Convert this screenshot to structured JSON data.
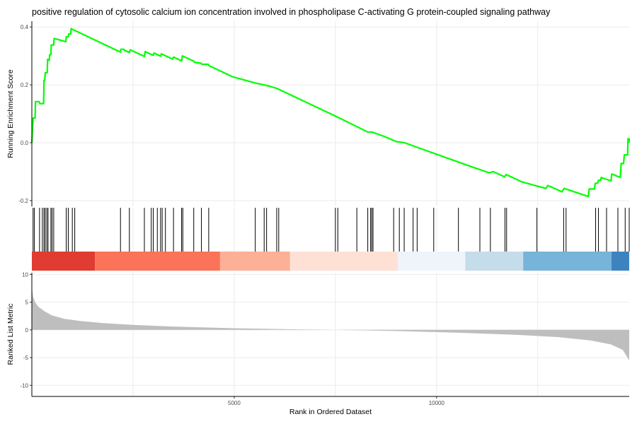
{
  "chart_data": {
    "type": "line",
    "title": "positive regulation of cytosolic calcium ion concentration involved in phospholipase C-activating G protein-coupled signaling pathway",
    "xlabel": "Rank in Ordered Dataset",
    "xlim": [
      0,
      14760
    ],
    "x_ticks": [
      {
        "value": 5000,
        "label": "5000"
      },
      {
        "value": 10000,
        "label": "10000"
      }
    ],
    "x_gridlines": [
      2500,
      5000,
      7500,
      10000,
      12500
    ],
    "grid": true,
    "colors": {
      "running_score_line": "#00ff00",
      "hit_lines": "#000000",
      "metric_area": "#bebebe",
      "gridline": "#ebebeb",
      "axis": "#000000"
    },
    "panels": [
      {
        "name": "running-enrichment-score",
        "ylabel": "Running Enrichment Score",
        "ylim": [
          -0.22,
          0.42
        ],
        "y_ticks": [
          {
            "value": 0.4,
            "label": "0.4"
          },
          {
            "value": 0.2,
            "label": "0.2"
          },
          {
            "value": 0.0,
            "label": "0.0"
          },
          {
            "value": -0.2,
            "label": "-0.2"
          }
        ],
        "series": [
          {
            "points": [
              [
                0,
                0.0
              ],
              [
                30,
                0.085
              ],
              [
                80,
                0.085
              ],
              [
                90,
                0.142
              ],
              [
                180,
                0.142
              ],
              [
                200,
                0.135
              ],
              [
                290,
                0.135
              ],
              [
                300,
                0.216
              ],
              [
                320,
                0.216
              ],
              [
                330,
                0.242
              ],
              [
                380,
                0.242
              ],
              [
                390,
                0.288
              ],
              [
                430,
                0.285
              ],
              [
                440,
                0.304
              ],
              [
                470,
                0.304
              ],
              [
                480,
                0.338
              ],
              [
                540,
                0.338
              ],
              [
                550,
                0.36
              ],
              [
                620,
                0.358
              ],
              [
                840,
                0.349
              ],
              [
                850,
                0.366
              ],
              [
                900,
                0.366
              ],
              [
                910,
                0.376
              ],
              [
                960,
                0.376
              ],
              [
                970,
                0.394
              ],
              [
                2190,
                0.313
              ],
              [
                2200,
                0.323
              ],
              [
                2270,
                0.323
              ],
              [
                2290,
                0.319
              ],
              [
                2410,
                0.312
              ],
              [
                2430,
                0.321
              ],
              [
                2780,
                0.298
              ],
              [
                2800,
                0.315
              ],
              [
                3000,
                0.302
              ],
              [
                3020,
                0.31
              ],
              [
                3180,
                0.299
              ],
              [
                3200,
                0.307
              ],
              [
                3480,
                0.289
              ],
              [
                3500,
                0.296
              ],
              [
                3700,
                0.283
              ],
              [
                3720,
                0.3
              ],
              [
                4000,
                0.282
              ],
              [
                4020,
                0.278
              ],
              [
                4180,
                0.275
              ],
              [
                4200,
                0.271
              ],
              [
                4360,
                0.271
              ],
              [
                4380,
                0.266
              ],
              [
                4960,
                0.228
              ],
              [
                5500,
                0.207
              ],
              [
                5800,
                0.198
              ],
              [
                6050,
                0.188
              ],
              [
                7500,
                0.092
              ],
              [
                8300,
                0.037
              ],
              [
                8400,
                0.037
              ],
              [
                8700,
                0.022
              ],
              [
                9000,
                0.004
              ],
              [
                9200,
                0.0
              ],
              [
                10800,
                -0.08
              ],
              [
                11300,
                -0.104
              ],
              [
                11400,
                -0.1
              ],
              [
                11680,
                -0.118
              ],
              [
                11720,
                -0.11
              ],
              [
                12100,
                -0.135
              ],
              [
                12400,
                -0.147
              ],
              [
                12700,
                -0.158
              ],
              [
                12750,
                -0.148
              ],
              [
                13100,
                -0.17
              ],
              [
                13150,
                -0.158
              ],
              [
                13750,
                -0.186
              ],
              [
                13770,
                -0.16
              ],
              [
                13900,
                -0.16
              ],
              [
                13920,
                -0.14
              ],
              [
                13980,
                -0.14
              ],
              [
                14000,
                -0.13
              ],
              [
                14050,
                -0.13
              ],
              [
                14070,
                -0.12
              ],
              [
                14310,
                -0.132
              ],
              [
                14330,
                -0.108
              ],
              [
                14540,
                -0.12
              ],
              [
                14560,
                -0.072
              ],
              [
                14620,
                -0.072
              ],
              [
                14640,
                -0.042
              ],
              [
                14720,
                -0.042
              ],
              [
                14730,
                0.014
              ],
              [
                14760,
                0.013
              ],
              [
                14920,
                0.0
              ]
            ]
          }
        ]
      },
      {
        "name": "gene-hits",
        "hit_ranks": [
          30,
          60,
          190,
          260,
          300,
          330,
          370,
          400,
          470,
          500,
          540,
          850,
          900,
          1000,
          1060,
          2190,
          2410,
          2780,
          2950,
          3000,
          3100,
          3180,
          3220,
          3300,
          3500,
          3700,
          3730,
          4000,
          4190,
          4370,
          5520,
          5740,
          5800,
          6050,
          6100,
          7500,
          7560,
          8030,
          8300,
          8370,
          8400,
          8430,
          8940,
          9080,
          9200,
          9420,
          9520,
          9930,
          10540,
          11070,
          11330,
          11690,
          11730,
          12480,
          13140,
          13200,
          13930,
          14000,
          14200,
          14480,
          14660,
          14920
        ]
      },
      {
        "name": "rank-color-bar",
        "segments": [
          {
            "start": 0,
            "end": 1560,
            "color": "#e03c31"
          },
          {
            "start": 1560,
            "end": 4650,
            "color": "#fb7358"
          },
          {
            "start": 4650,
            "end": 6380,
            "color": "#fcb095"
          },
          {
            "start": 6380,
            "end": 9040,
            "color": "#fee1d4"
          },
          {
            "start": 9040,
            "end": 10710,
            "color": "#eff3fb"
          },
          {
            "start": 10710,
            "end": 12140,
            "color": "#c5dcea"
          },
          {
            "start": 12140,
            "end": 14320,
            "color": "#77b4d9"
          },
          {
            "start": 14320,
            "end": 14920,
            "color": "#3d84bf"
          }
        ]
      },
      {
        "name": "ranked-list-metric",
        "ylabel": "Ranked List Metric",
        "ylim": [
          -12,
          10.3
        ],
        "y_ticks": [
          {
            "value": 10,
            "label": "10"
          },
          {
            "value": 5,
            "label": "5"
          },
          {
            "value": 0,
            "label": "0"
          },
          {
            "value": -5,
            "label": "-5"
          },
          {
            "value": -10,
            "label": "-10"
          }
        ],
        "series": [
          {
            "points": [
              [
                0,
                7.6
              ],
              [
                30,
                6.0
              ],
              [
                80,
                5.0
              ],
              [
                160,
                4.2
              ],
              [
                300,
                3.4
              ],
              [
                500,
                2.6
              ],
              [
                800,
                2.0
              ],
              [
                1200,
                1.6
              ],
              [
                1800,
                1.2
              ],
              [
                2500,
                0.9
              ],
              [
                3500,
                0.6
              ],
              [
                5000,
                0.3
              ],
              [
                6500,
                0.1
              ],
              [
                7500,
                0.0
              ],
              [
                9000,
                -0.2
              ],
              [
                10500,
                -0.5
              ],
              [
                12000,
                -0.9
              ],
              [
                13000,
                -1.3
              ],
              [
                13800,
                -1.9
              ],
              [
                14300,
                -2.6
              ],
              [
                14600,
                -3.6
              ],
              [
                14760,
                -5.5
              ],
              [
                14840,
                -7.5
              ],
              [
                14900,
                -9.5
              ],
              [
                14920,
                -10.8
              ]
            ]
          }
        ]
      }
    ]
  }
}
